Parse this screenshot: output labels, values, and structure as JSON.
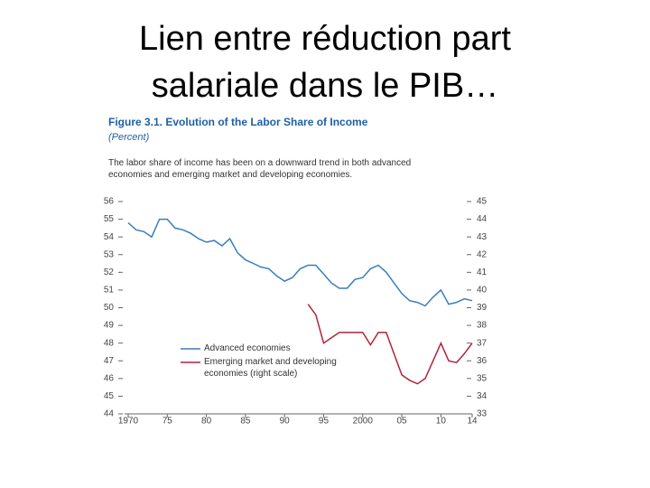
{
  "slide_title_lines": [
    "Lien entre réduction part",
    "salariale dans le PIB…"
  ],
  "chart_data": {
    "type": "line",
    "title": "Figure 3.1.  Evolution of the Labor Share of Income",
    "subtitle": "(Percent)",
    "note": "The labor share of income has been on a downward trend in both advanced economies and emerging market and developing economies.",
    "x": [
      1970,
      1971,
      1972,
      1973,
      1974,
      1975,
      1976,
      1977,
      1978,
      1979,
      1980,
      1981,
      1982,
      1983,
      1984,
      1985,
      1986,
      1987,
      1988,
      1989,
      1990,
      1991,
      1992,
      1993,
      1994,
      1995,
      1996,
      1997,
      1998,
      1999,
      2000,
      2001,
      2002,
      2003,
      2004,
      2005,
      2006,
      2007,
      2008,
      2009,
      2010,
      2011,
      2012,
      2013,
      2014
    ],
    "series": [
      {
        "name": "Advanced economies",
        "color": "#3a7dc0",
        "values": [
          54.8,
          54.4,
          54.3,
          54.0,
          55.0,
          55.0,
          54.5,
          54.4,
          54.2,
          53.9,
          53.7,
          53.8,
          53.5,
          53.9,
          53.1,
          52.7,
          52.5,
          52.3,
          52.2,
          51.8,
          51.5,
          51.7,
          52.2,
          52.4,
          52.4,
          51.9,
          51.4,
          51.1,
          51.1,
          51.6,
          51.7,
          52.2,
          52.4,
          52.0,
          51.4,
          50.8,
          50.4,
          50.3,
          50.1,
          50.6,
          51.0,
          50.2,
          50.3,
          50.5,
          50.4
        ]
      },
      {
        "name": "Emerging market and developing economies (right scale)",
        "color": "#b0243a",
        "axis": "y2",
        "values": [
          null,
          null,
          null,
          null,
          null,
          null,
          null,
          null,
          null,
          null,
          null,
          null,
          null,
          null,
          null,
          null,
          null,
          null,
          null,
          null,
          null,
          null,
          null,
          39.2,
          38.6,
          37.0,
          37.3,
          37.6,
          37.6,
          37.6,
          37.6,
          36.9,
          37.6,
          37.6,
          36.4,
          35.2,
          34.9,
          34.7,
          35.0,
          36.0,
          37.0,
          36.0,
          35.9,
          36.4,
          37.0
        ]
      }
    ],
    "xlim": [
      1970,
      2014
    ],
    "xticks": [
      {
        "value": 1970,
        "label": "1970"
      },
      {
        "value": 1975,
        "label": "75"
      },
      {
        "value": 1980,
        "label": "80"
      },
      {
        "value": 1985,
        "label": "85"
      },
      {
        "value": 1990,
        "label": "90"
      },
      {
        "value": 1995,
        "label": "95"
      },
      {
        "value": 2000,
        "label": "2000"
      },
      {
        "value": 2005,
        "label": "05"
      },
      {
        "value": 2010,
        "label": "10"
      },
      {
        "value": 2014,
        "label": "14"
      }
    ],
    "ylim": [
      44,
      56
    ],
    "yticks": [
      44,
      45,
      46,
      47,
      48,
      49,
      50,
      51,
      52,
      53,
      54,
      55,
      56
    ],
    "y2lim": [
      33,
      45
    ],
    "y2ticks": [
      33,
      34,
      35,
      36,
      37,
      38,
      39,
      40,
      41,
      42,
      43,
      44,
      45
    ],
    "legend": "lower left",
    "grid": false
  }
}
